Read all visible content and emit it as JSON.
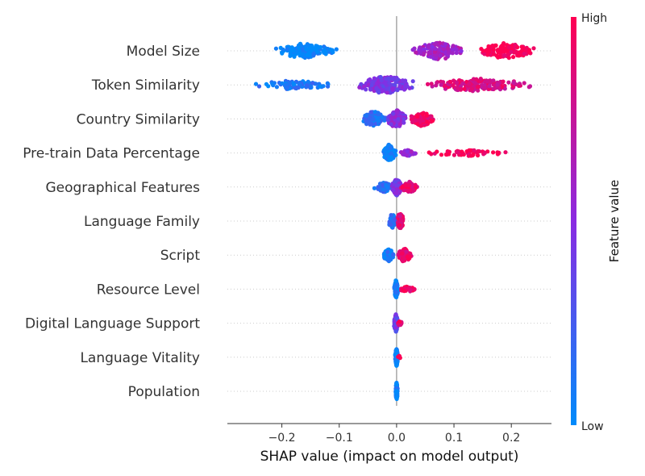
{
  "chart_data": {
    "type": "scatter",
    "subtype": "shap-beeswarm",
    "title": "",
    "xlabel": "SHAP value (impact on model output)",
    "xlim": [
      -0.295,
      0.27
    ],
    "xticks": [
      -0.2,
      -0.1,
      0.0,
      0.1,
      0.2
    ],
    "xtick_labels": [
      "−0.2",
      "−0.1",
      "0.0",
      "0.1",
      "0.2"
    ],
    "zero_line": true,
    "row_guides": "dotted",
    "colors": {
      "low": "#008bfb",
      "mid": "#8a2be2",
      "high": "#ff0052",
      "zero_line": "#999999",
      "axis": "#333333"
    },
    "colorbar": {
      "title": "Feature value",
      "high_label": "High",
      "low_label": "Low",
      "placement": "right"
    },
    "features": [
      {
        "name": "Model Size",
        "clusters": [
          {
            "start": -0.225,
            "end": -0.095,
            "value": 0.0,
            "n": 150,
            "spread": 0.8
          },
          {
            "start": 0.025,
            "end": 0.12,
            "value": 0.6,
            "n": 160,
            "spread": 1.0
          },
          {
            "start": 0.13,
            "end": 0.25,
            "value": 1.0,
            "n": 120,
            "spread": 0.9
          }
        ]
      },
      {
        "name": "Token Similarity",
        "clusters": [
          {
            "start": -0.27,
            "end": -0.09,
            "value": 0.1,
            "n": 80,
            "spread": 0.5
          },
          {
            "start": -0.08,
            "end": 0.04,
            "value": 0.45,
            "n": 200,
            "spread": 1.0
          },
          {
            "start": 0.04,
            "end": 0.245,
            "value": 0.85,
            "n": 170,
            "spread": 0.75
          }
        ]
      },
      {
        "name": "Country Similarity",
        "clusters": [
          {
            "start": -0.065,
            "end": -0.015,
            "value": 0.15,
            "n": 110,
            "spread": 0.9
          },
          {
            "start": -0.02,
            "end": 0.02,
            "value": 0.5,
            "n": 130,
            "spread": 1.0
          },
          {
            "start": 0.02,
            "end": 0.07,
            "value": 0.95,
            "n": 90,
            "spread": 0.8
          }
        ]
      },
      {
        "name": "Pre-train Data Percentage",
        "clusters": [
          {
            "start": -0.025,
            "end": 0.0,
            "value": 0.05,
            "n": 150,
            "spread": 1.0
          },
          {
            "start": 0.0,
            "end": 0.04,
            "value": 0.55,
            "n": 40,
            "spread": 0.35
          },
          {
            "start": 0.04,
            "end": 0.21,
            "value": 0.97,
            "n": 55,
            "spread": 0.35
          }
        ]
      },
      {
        "name": "Geographical Features",
        "clusters": [
          {
            "start": -0.04,
            "end": -0.005,
            "value": 0.15,
            "n": 70,
            "spread": 0.6
          },
          {
            "start": -0.01,
            "end": 0.01,
            "value": 0.45,
            "n": 150,
            "spread": 1.0
          },
          {
            "start": 0.005,
            "end": 0.04,
            "value": 0.9,
            "n": 60,
            "spread": 0.6
          }
        ]
      },
      {
        "name": "Language Family",
        "clusters": [
          {
            "start": -0.015,
            "end": 0.0,
            "value": 0.15,
            "n": 90,
            "spread": 0.8
          },
          {
            "start": 0.0,
            "end": 0.013,
            "value": 0.9,
            "n": 100,
            "spread": 1.0
          }
        ]
      },
      {
        "name": "Script",
        "clusters": [
          {
            "start": -0.028,
            "end": 0.0,
            "value": 0.1,
            "n": 80,
            "spread": 0.7
          },
          {
            "start": 0.0,
            "end": 0.028,
            "value": 0.9,
            "n": 90,
            "spread": 0.8
          }
        ]
      },
      {
        "name": "Resource Level",
        "clusters": [
          {
            "start": -0.005,
            "end": 0.003,
            "value": 0.05,
            "n": 150,
            "spread": 1.0
          },
          {
            "start": 0.003,
            "end": 0.038,
            "value": 0.95,
            "n": 30,
            "spread": 0.3
          }
        ]
      },
      {
        "name": "Digital Language Support",
        "clusters": [
          {
            "start": -0.005,
            "end": 0.003,
            "value": 0.4,
            "n": 150,
            "spread": 1.0
          },
          {
            "start": 0.002,
            "end": 0.01,
            "value": 0.9,
            "n": 15,
            "spread": 0.3
          }
        ]
      },
      {
        "name": "Language Vitality",
        "clusters": [
          {
            "start": -0.003,
            "end": 0.003,
            "value": 0.05,
            "n": 150,
            "spread": 1.0
          },
          {
            "start": 0.002,
            "end": 0.007,
            "value": 0.95,
            "n": 6,
            "spread": 0.2
          }
        ]
      },
      {
        "name": "Population",
        "clusters": [
          {
            "start": -0.002,
            "end": 0.002,
            "value": 0.05,
            "n": 150,
            "spread": 1.0
          }
        ]
      }
    ]
  }
}
